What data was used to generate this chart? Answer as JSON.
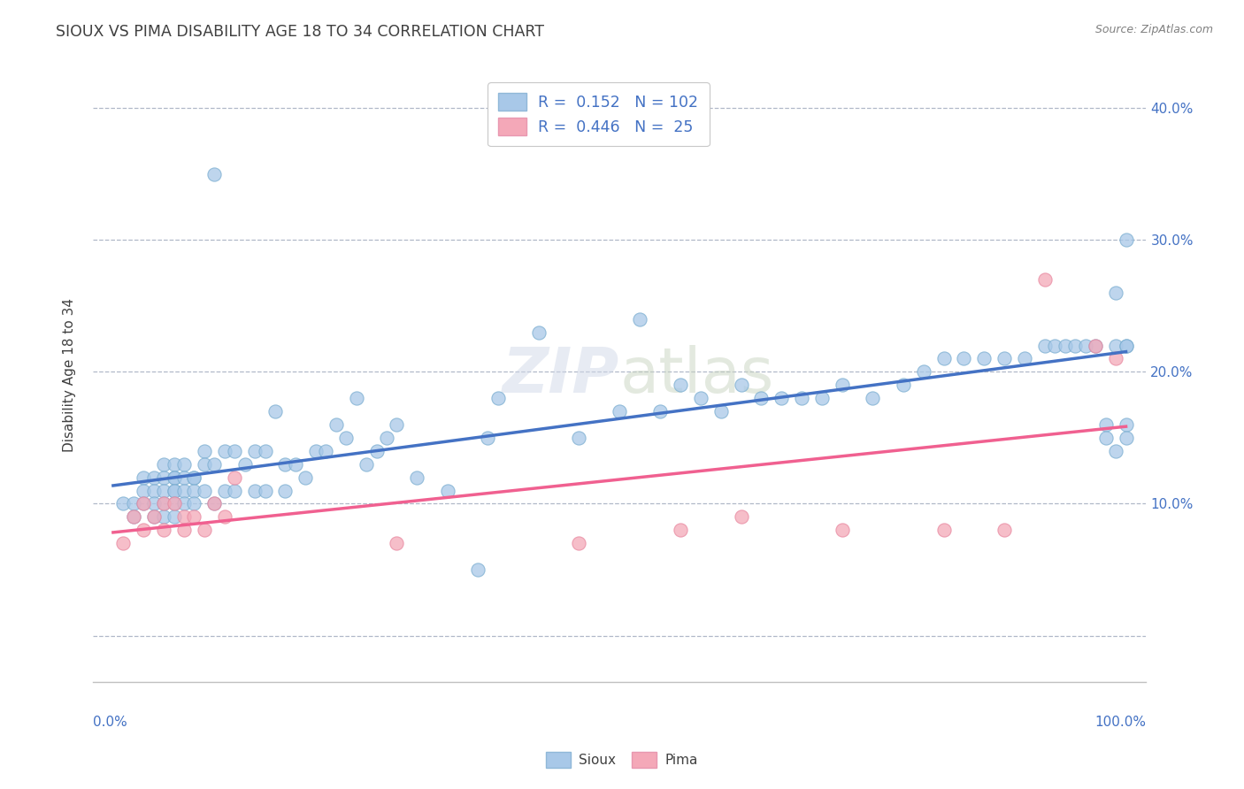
{
  "title": "SIOUX VS PIMA DISABILITY AGE 18 TO 34 CORRELATION CHART",
  "source": "Source: ZipAtlas.com",
  "ylabel": "Disability Age 18 to 34",
  "xlim": [
    -0.02,
    1.02
  ],
  "ylim": [
    -0.035,
    0.43
  ],
  "yticks": [
    0.0,
    0.1,
    0.2,
    0.3,
    0.4
  ],
  "ytick_labels": [
    "",
    "10.0%",
    "20.0%",
    "30.0%",
    "40.0%"
  ],
  "sioux_R": 0.152,
  "sioux_N": 102,
  "pima_R": 0.446,
  "pima_N": 25,
  "sioux_color": "#a8c8e8",
  "pima_color": "#f4a8b8",
  "sioux_line_color": "#4472c4",
  "pima_line_color": "#f06090",
  "background_color": "#ffffff",
  "grid_color": "#b0b8c8",
  "sioux_x": [
    0.01,
    0.02,
    0.02,
    0.03,
    0.03,
    0.03,
    0.04,
    0.04,
    0.04,
    0.04,
    0.05,
    0.05,
    0.05,
    0.05,
    0.05,
    0.06,
    0.06,
    0.06,
    0.06,
    0.06,
    0.06,
    0.06,
    0.07,
    0.07,
    0.07,
    0.07,
    0.08,
    0.08,
    0.08,
    0.08,
    0.09,
    0.09,
    0.09,
    0.1,
    0.1,
    0.1,
    0.11,
    0.11,
    0.12,
    0.12,
    0.13,
    0.14,
    0.14,
    0.15,
    0.15,
    0.16,
    0.17,
    0.17,
    0.18,
    0.19,
    0.2,
    0.21,
    0.22,
    0.23,
    0.24,
    0.25,
    0.26,
    0.27,
    0.28,
    0.3,
    0.33,
    0.36,
    0.37,
    0.38,
    0.42,
    0.46,
    0.5,
    0.52,
    0.54,
    0.56,
    0.58,
    0.6,
    0.62,
    0.64,
    0.66,
    0.68,
    0.7,
    0.72,
    0.75,
    0.78,
    0.8,
    0.82,
    0.84,
    0.86,
    0.88,
    0.9,
    0.92,
    0.93,
    0.94,
    0.95,
    0.96,
    0.97,
    0.98,
    0.98,
    0.99,
    0.99,
    0.99,
    1.0,
    1.0,
    1.0,
    1.0,
    1.0
  ],
  "sioux_y": [
    0.1,
    0.1,
    0.09,
    0.12,
    0.11,
    0.1,
    0.12,
    0.11,
    0.1,
    0.09,
    0.13,
    0.12,
    0.11,
    0.1,
    0.09,
    0.13,
    0.12,
    0.12,
    0.11,
    0.11,
    0.1,
    0.09,
    0.13,
    0.12,
    0.11,
    0.1,
    0.12,
    0.12,
    0.11,
    0.1,
    0.14,
    0.13,
    0.11,
    0.35,
    0.13,
    0.1,
    0.14,
    0.11,
    0.14,
    0.11,
    0.13,
    0.14,
    0.11,
    0.14,
    0.11,
    0.17,
    0.13,
    0.11,
    0.13,
    0.12,
    0.14,
    0.14,
    0.16,
    0.15,
    0.18,
    0.13,
    0.14,
    0.15,
    0.16,
    0.12,
    0.11,
    0.05,
    0.15,
    0.18,
    0.23,
    0.15,
    0.17,
    0.24,
    0.17,
    0.19,
    0.18,
    0.17,
    0.19,
    0.18,
    0.18,
    0.18,
    0.18,
    0.19,
    0.18,
    0.19,
    0.2,
    0.21,
    0.21,
    0.21,
    0.21,
    0.21,
    0.22,
    0.22,
    0.22,
    0.22,
    0.22,
    0.22,
    0.16,
    0.15,
    0.14,
    0.22,
    0.26,
    0.16,
    0.15,
    0.3,
    0.22,
    0.22
  ],
  "pima_x": [
    0.01,
    0.02,
    0.03,
    0.03,
    0.04,
    0.05,
    0.05,
    0.06,
    0.07,
    0.07,
    0.08,
    0.09,
    0.1,
    0.11,
    0.12,
    0.28,
    0.46,
    0.56,
    0.62,
    0.72,
    0.82,
    0.88,
    0.92,
    0.97,
    0.99
  ],
  "pima_y": [
    0.07,
    0.09,
    0.1,
    0.08,
    0.09,
    0.1,
    0.08,
    0.1,
    0.09,
    0.08,
    0.09,
    0.08,
    0.1,
    0.09,
    0.12,
    0.07,
    0.07,
    0.08,
    0.09,
    0.08,
    0.08,
    0.08,
    0.27,
    0.22,
    0.21
  ]
}
